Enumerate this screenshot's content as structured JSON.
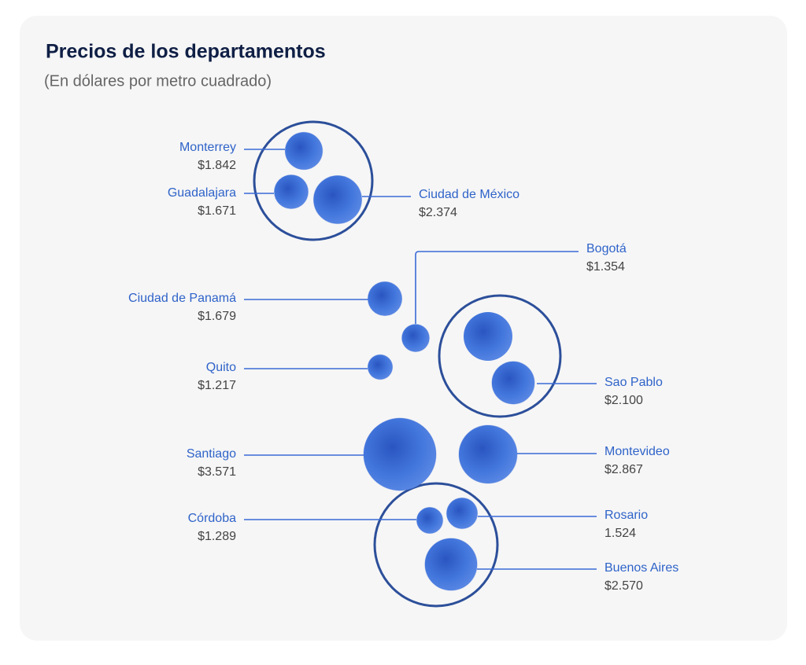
{
  "chart_data": {
    "type": "bubble",
    "title": "Precios de los departamentos",
    "subtitle": "(En dólares por metro cuadrado)",
    "color": "#3a6ad6",
    "categories": [
      "Monterrey",
      "Guadalajara",
      "Ciudad de México",
      "Bogotá",
      "Ciudad de Panamá",
      "Quito",
      "Sao Pablo",
      "Santiago",
      "Montevideo",
      "Córdoba",
      "Rosario",
      "Buenos Aires"
    ],
    "values": [
      1842,
      1671,
      2374,
      1354,
      1679,
      1217,
      2100,
      3571,
      2867,
      1289,
      1524,
      2570
    ],
    "value_labels": [
      "$1.842",
      "$1.671",
      "$2.374",
      "$1.354",
      "$1.679",
      "$1.217",
      "$2.100",
      "$3.571",
      "$2.867",
      "$1.289",
      "1.524",
      "$2.570"
    ]
  }
}
